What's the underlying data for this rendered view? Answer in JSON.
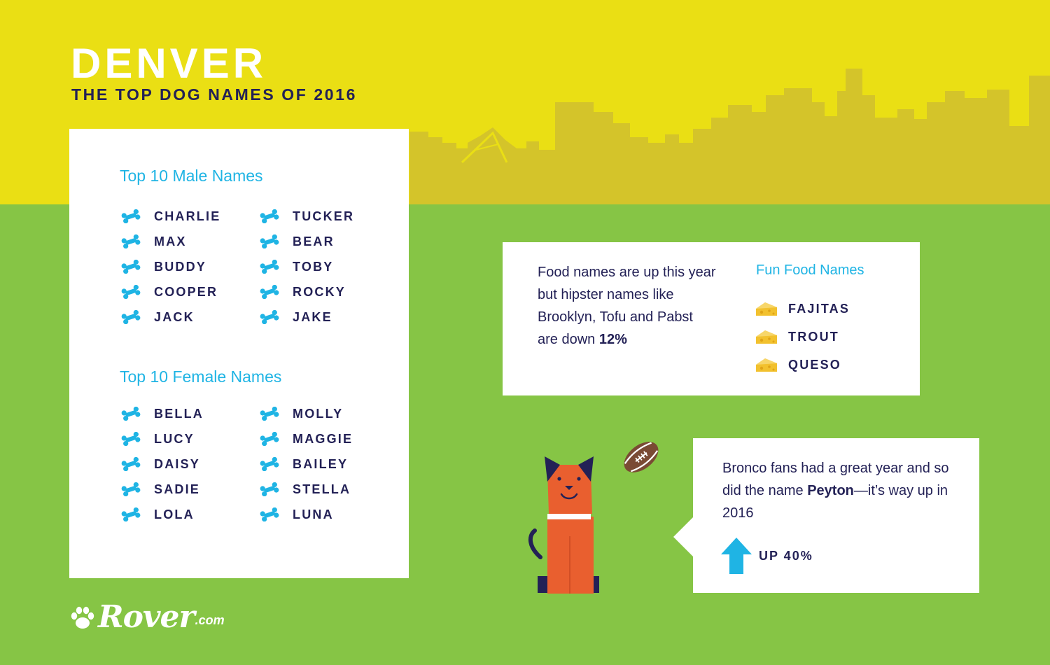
{
  "header": {
    "title": "DENVER",
    "subtitle": "THE TOP DOG NAMES OF 2016"
  },
  "names_card": {
    "male_heading": "Top 10 Male Names",
    "male_names": [
      "CHARLIE",
      "MAX",
      "BUDDY",
      "COOPER",
      "JACK",
      "TUCKER",
      "BEAR",
      "TOBY",
      "ROCKY",
      "JAKE"
    ],
    "female_heading": "Top 10 Female Names",
    "female_names": [
      "BELLA",
      "LUCY",
      "DAISY",
      "SADIE",
      "LOLA",
      "MOLLY",
      "MAGGIE",
      "BAILEY",
      "STELLA",
      "LUNA"
    ]
  },
  "food_card": {
    "text_prefix": "Food names are up this year but hipster names like Brooklyn, Tofu and Pabst are down ",
    "text_highlight": "12%",
    "heading": "Fun Food Names",
    "items": [
      "FAJITAS",
      "TROUT",
      "QUESO"
    ]
  },
  "peyton_card": {
    "text_prefix": "Bronco fans had a great year and so did the name ",
    "text_highlight": "Peyton",
    "text_suffix": "—it’s way up in 2016",
    "stat": "UP 40%"
  },
  "logo": {
    "word": "Rover",
    "suffix": ".com"
  },
  "colors": {
    "sky": "#eadf14",
    "skyline": "#d4c42a",
    "grass": "#86c545",
    "navy": "#232156",
    "accent_blue": "#1fb4e4",
    "dog_orange": "#e95f2f",
    "cheese": "#f2c12e"
  },
  "icons": {
    "list_bullet": "dog-bone-icon",
    "food_bullet": "cheese-icon",
    "stat_icon": "up-arrow-icon",
    "logo_icon": "paw-icon"
  }
}
